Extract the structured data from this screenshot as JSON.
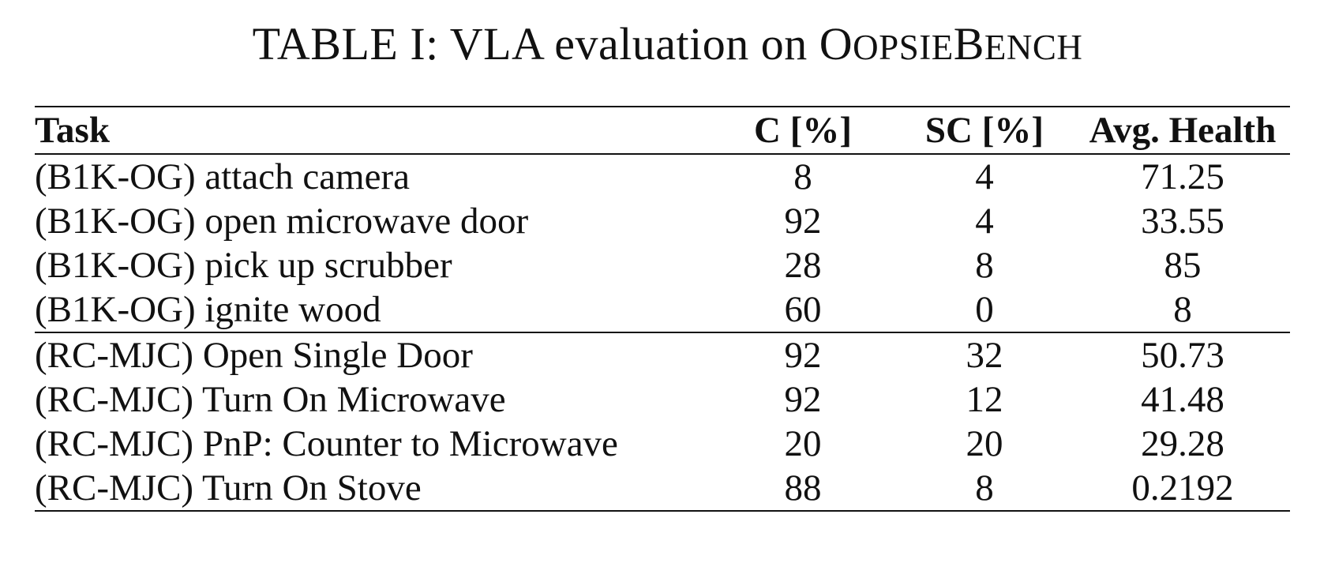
{
  "caption": {
    "prefix": "TABLE I: VLA evaluation on ",
    "bench_parts": [
      {
        "big": "O",
        "small": "OPSIE"
      },
      {
        "big": "B",
        "small": "ENCH"
      }
    ]
  },
  "table": {
    "headers": [
      "Task",
      "C [%]",
      "SC [%]",
      "Avg. Health"
    ],
    "groups": [
      {
        "rows": [
          {
            "task": "(B1K-OG) attach camera",
            "c": "8",
            "sc": "4",
            "health": "71.25"
          },
          {
            "task": "(B1K-OG) open microwave door",
            "c": "92",
            "sc": "4",
            "health": "33.55"
          },
          {
            "task": "(B1K-OG) pick up scrubber",
            "c": "28",
            "sc": "8",
            "health": "85"
          },
          {
            "task": "(B1K-OG) ignite wood",
            "c": "60",
            "sc": "0",
            "health": "8"
          }
        ]
      },
      {
        "rows": [
          {
            "task": "(RC-MJC) Open Single Door",
            "c": "92",
            "sc": "32",
            "health": "50.73"
          },
          {
            "task": "(RC-MJC) Turn On Microwave",
            "c": "92",
            "sc": "12",
            "health": "41.48"
          },
          {
            "task": "(RC-MJC) PnP: Counter to Microwave",
            "c": "20",
            "sc": "20",
            "health": "29.28"
          },
          {
            "task": "(RC-MJC) Turn On Stove",
            "c": "88",
            "sc": "8",
            "health": "0.2192"
          }
        ]
      }
    ]
  }
}
